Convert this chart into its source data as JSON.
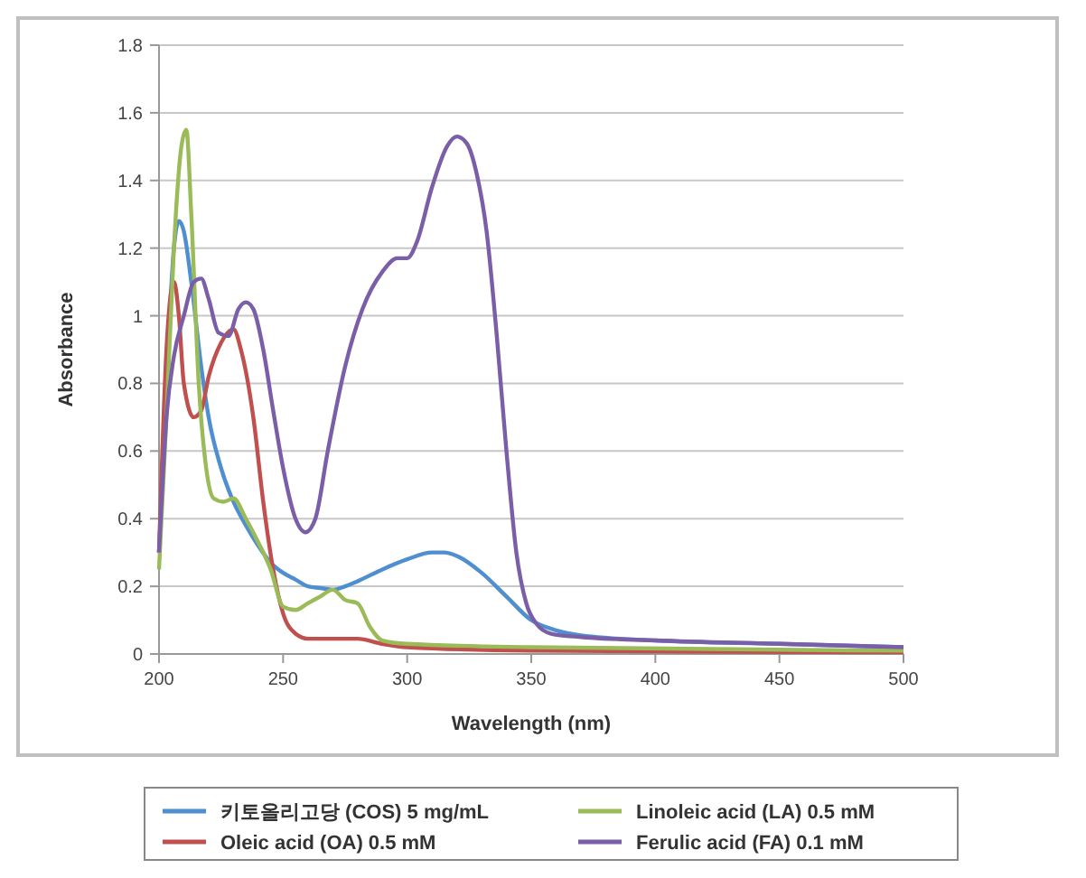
{
  "chart_data": {
    "type": "line",
    "xlabel": "Wavelength (nm)",
    "ylabel": "Absorbance",
    "xlim": [
      200,
      500
    ],
    "xticks": [
      200,
      250,
      300,
      350,
      400,
      450,
      500
    ],
    "ylim": [
      0,
      1.8
    ],
    "yticks": [
      0,
      0.2,
      0.4,
      0.6,
      0.8,
      1,
      1.2,
      1.4,
      1.6,
      1.8
    ],
    "grid": "y",
    "legend": "bottom",
    "marker": "none",
    "line_style": "solid",
    "series": [
      {
        "name": "키토올리고당 (COS) 5 mg/mL",
        "color": "#4f8fd0",
        "x": [
          200,
          203,
          206,
          208,
          210,
          213,
          217,
          220,
          225,
          230,
          235,
          240,
          245,
          250,
          255,
          260,
          265,
          270,
          275,
          280,
          290,
          300,
          310,
          315,
          320,
          330,
          340,
          350,
          360,
          370,
          400,
          450,
          500
        ],
        "values": [
          0.3,
          0.8,
          1.2,
          1.28,
          1.25,
          1.1,
          0.85,
          0.7,
          0.55,
          0.45,
          0.38,
          0.32,
          0.27,
          0.24,
          0.22,
          0.2,
          0.195,
          0.19,
          0.2,
          0.215,
          0.25,
          0.28,
          0.3,
          0.3,
          0.29,
          0.24,
          0.17,
          0.1,
          0.07,
          0.055,
          0.04,
          0.03,
          0.02
        ]
      },
      {
        "name": "Oleic acid (OA) 0.5 mM",
        "color": "#c0504d",
        "x": [
          200,
          203,
          206,
          208,
          210,
          214,
          217,
          220,
          225,
          230,
          233,
          238,
          242,
          246,
          250,
          255,
          260,
          270,
          280,
          290,
          300,
          350,
          500
        ],
        "values": [
          0.3,
          0.9,
          1.1,
          1.0,
          0.8,
          0.7,
          0.72,
          0.82,
          0.92,
          0.96,
          0.9,
          0.7,
          0.45,
          0.25,
          0.12,
          0.06,
          0.045,
          0.045,
          0.045,
          0.03,
          0.02,
          0.01,
          0.005
        ]
      },
      {
        "name": "Linoleic acid (LA) 0.5 mM",
        "color": "#9bbb59",
        "x": [
          200,
          203,
          206,
          209,
          211,
          213,
          216,
          219,
          222,
          226,
          230,
          235,
          240,
          245,
          250,
          255,
          260,
          265,
          270,
          275,
          280,
          285,
          290,
          300,
          350,
          500
        ],
        "values": [
          0.25,
          0.7,
          1.2,
          1.5,
          1.55,
          1.3,
          0.8,
          0.55,
          0.46,
          0.45,
          0.46,
          0.4,
          0.33,
          0.25,
          0.14,
          0.13,
          0.15,
          0.17,
          0.19,
          0.16,
          0.15,
          0.08,
          0.04,
          0.03,
          0.02,
          0.01
        ]
      },
      {
        "name": "Ferulic acid (FA) 0.1 mM",
        "color": "#7a5fa8",
        "x": [
          200,
          203,
          206,
          210,
          214,
          217,
          220,
          224,
          228,
          232,
          235,
          238,
          242,
          246,
          250,
          255,
          259,
          263,
          268,
          275,
          282,
          290,
          296,
          300,
          304,
          310,
          316,
          320,
          324,
          328,
          332,
          336,
          340,
          344,
          348,
          352,
          358,
          370,
          400,
          450,
          500
        ],
        "values": [
          0.3,
          0.7,
          0.88,
          1.0,
          1.1,
          1.11,
          1.05,
          0.95,
          0.94,
          1.02,
          1.04,
          1.02,
          0.9,
          0.72,
          0.55,
          0.4,
          0.36,
          0.4,
          0.6,
          0.85,
          1.02,
          1.13,
          1.17,
          1.17,
          1.22,
          1.38,
          1.5,
          1.53,
          1.51,
          1.42,
          1.25,
          0.95,
          0.6,
          0.3,
          0.15,
          0.09,
          0.06,
          0.05,
          0.04,
          0.03,
          0.02
        ]
      }
    ]
  }
}
